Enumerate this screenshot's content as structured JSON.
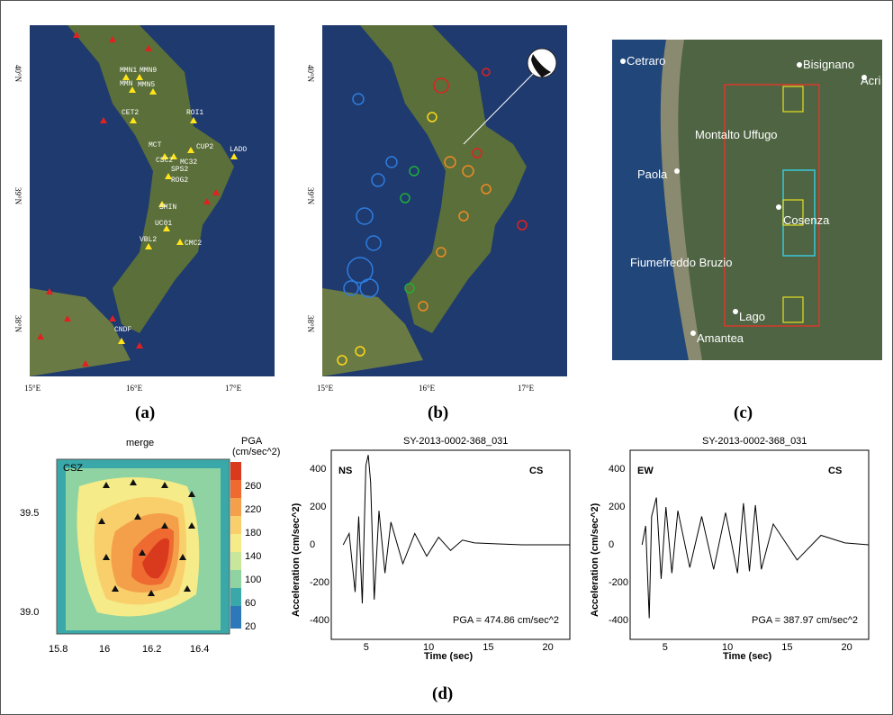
{
  "captions": {
    "a": "(a)",
    "b": "(b)",
    "c": "(c)",
    "d": "(d)"
  },
  "map_axes": {
    "lat_labels": [
      "40°N",
      "39°N",
      "38°N"
    ],
    "lon_labels": [
      "15°E",
      "16°E",
      "17°E"
    ]
  },
  "panel_a": {
    "stations": [
      "MMN1",
      "MMN9",
      "MMN",
      "MMN5",
      "CET2",
      "ROI1",
      "MCT",
      "CUP2",
      "CSC2",
      "MC32",
      "LADO",
      "SPS2",
      "ROG2",
      "SMIN",
      "UC01",
      "VBL2",
      "CMC2",
      "CNDF"
    ]
  },
  "panel_c": {
    "towns": [
      "Cetraro",
      "Bisignano",
      "Acri",
      "Montalto Uffugo",
      "Paola",
      "Cosenza",
      "Fiumefreddo Bruzio",
      "Lago",
      "Amantea"
    ]
  },
  "contour": {
    "title": "merge",
    "colorbar_title_1": "PGA",
    "colorbar_title_2": "(cm/sec^2)",
    "colorbar_ticks": [
      "260",
      "220",
      "180",
      "140",
      "100",
      "60",
      "20"
    ],
    "colorbar_colors": [
      "#d93a1e",
      "#ee6a31",
      "#f4a04a",
      "#f8cf6a",
      "#f5eb88",
      "#c9e79a",
      "#8ed3a1",
      "#3aa8a8",
      "#2d78b8"
    ],
    "x_ticks": [
      "15.8",
      "16",
      "16.2",
      "16.4"
    ],
    "y_ticks": [
      "39.5",
      "39.0"
    ],
    "marker_label": "CSZ"
  },
  "chart_data": [
    {
      "type": "line",
      "title": "SY-2013-0002-368_031",
      "component": "NS",
      "station": "CS",
      "pga_text": "PGA = 474.86 cm/sec^2",
      "xlabel": "Time (sec)",
      "ylabel": "Acceleration (cm/sec^2)",
      "xlim": [
        2,
        22
      ],
      "ylim": [
        -500,
        500
      ],
      "x_ticks": [
        "5",
        "10",
        "15",
        "20"
      ],
      "y_ticks": [
        "400",
        "200",
        "0",
        "-200",
        "-400"
      ],
      "series": [
        {
          "x": [
            3.0,
            3.5,
            4.0,
            4.3,
            4.6,
            4.9,
            5.1,
            5.3,
            5.6,
            6.0,
            6.5,
            7.0,
            8.0,
            9.0,
            10.0,
            11.0,
            12.0,
            13.0,
            14.0,
            16.0,
            18.0,
            22.0
          ],
          "y": [
            0,
            60,
            -250,
            150,
            -310,
            420,
            474.86,
            330,
            -290,
            180,
            -150,
            120,
            -100,
            60,
            -60,
            40,
            -30,
            25,
            10,
            5,
            0,
            0
          ]
        }
      ]
    },
    {
      "type": "line",
      "title": "SY-2013-0002-368_031",
      "component": "EW",
      "station": "CS",
      "pga_text": "PGA = 387.97 cm/sec^2",
      "xlabel": "Time (sec)",
      "ylabel": "Acceleration (cm/sec^2)",
      "xlim": [
        2,
        22
      ],
      "ylim": [
        -500,
        500
      ],
      "x_ticks": [
        "5",
        "10",
        "15",
        "20"
      ],
      "y_ticks": [
        "400",
        "200",
        "0",
        "-200",
        "-400"
      ],
      "series": [
        {
          "x": [
            3.0,
            3.3,
            3.6,
            3.8,
            4.2,
            4.6,
            5.0,
            5.5,
            6.0,
            7.0,
            8.0,
            9.0,
            10.0,
            11.0,
            11.5,
            12.0,
            12.5,
            13.0,
            14.0,
            16.0,
            18.0,
            20.0,
            22.0
          ],
          "y": [
            0,
            100,
            -387.97,
            150,
            250,
            -180,
            200,
            -150,
            180,
            -120,
            150,
            -130,
            170,
            -150,
            220,
            -140,
            210,
            -130,
            110,
            -80,
            50,
            10,
            0
          ]
        }
      ]
    }
  ]
}
